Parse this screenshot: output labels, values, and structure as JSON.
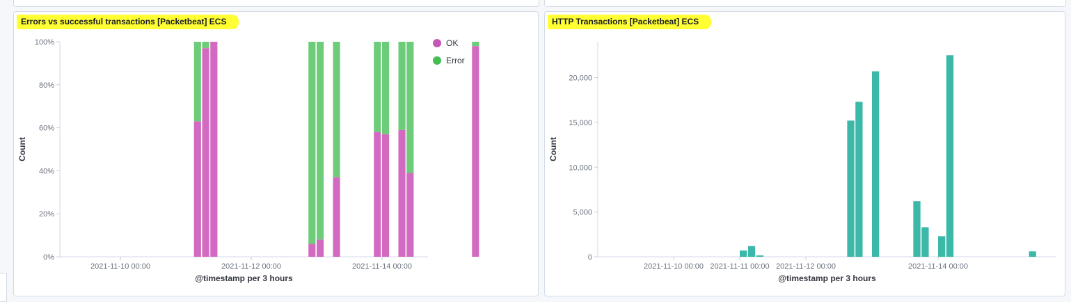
{
  "panels": {
    "left": {
      "title": "Errors vs successful transactions [Packetbeat] ECS",
      "chart_data": {
        "type": "bar",
        "stacked": true,
        "percentage": true,
        "xlabel": "@timestamp per 3 hours",
        "ylabel": "Count",
        "ylim": [
          0,
          100
        ],
        "y_ticks": [
          "0%",
          "20%",
          "40%",
          "60%",
          "80%",
          "100%"
        ],
        "x_tick_labels": [
          "2021-11-10 00:00",
          "2021-11-12 00:00",
          "2021-11-14 00:00"
        ],
        "legend": {
          "position": "top-right",
          "items": [
            {
              "label": "OK",
              "color": "#d36086"
            },
            {
              "label": "Error",
              "color": "#54b399"
            }
          ]
        },
        "bars": [
          {
            "x": "2021-11-11 03:00",
            "ok": 63,
            "error": 37
          },
          {
            "x": "2021-11-11 06:00",
            "ok": 97,
            "error": 3
          },
          {
            "x": "2021-11-11 09:00",
            "ok": 100,
            "error": 0
          },
          {
            "x": "2021-11-12 21:00",
            "ok": 6,
            "error": 94
          },
          {
            "x": "2021-11-13 00:00",
            "ok": 8,
            "error": 92
          },
          {
            "x": "2021-11-13 06:00",
            "ok": 37,
            "error": 63
          },
          {
            "x": "2021-11-13 21:00",
            "ok": 58,
            "error": 42
          },
          {
            "x": "2021-11-14 00:00",
            "ok": 57,
            "error": 43
          },
          {
            "x": "2021-11-14 06:00",
            "ok": 59,
            "error": 41
          },
          {
            "x": "2021-11-14 09:00",
            "ok": 39,
            "error": 61
          },
          {
            "x": "2021-11-15 09:00",
            "ok": 98,
            "error": 2
          }
        ]
      }
    },
    "right": {
      "title": "HTTP Transactions [Packetbeat] ECS",
      "chart_data": {
        "type": "bar",
        "xlabel": "@timestamp per 3 hours",
        "ylabel": "Count",
        "ylim": [
          0,
          24000
        ],
        "y_ticks": [
          "0",
          "5,000",
          "10,000",
          "15,000",
          "20,000"
        ],
        "x_tick_labels": [
          "2021-11-10 00:00",
          "2021-11-11 00:00",
          "2021-11-12 00:00",
          "2021-11-14 00:00"
        ],
        "color": "#54b399",
        "bars": [
          {
            "x": "2021-11-11 00:00",
            "value": 700
          },
          {
            "x": "2021-11-11 03:00",
            "value": 1200
          },
          {
            "x": "2021-11-11 06:00",
            "value": 150
          },
          {
            "x": "2021-11-12 15:00",
            "value": 15200
          },
          {
            "x": "2021-11-12 18:00",
            "value": 17300
          },
          {
            "x": "2021-11-13 00:00",
            "value": 20700
          },
          {
            "x": "2021-11-13 15:00",
            "value": 6200
          },
          {
            "x": "2021-11-13 18:00",
            "value": 3300
          },
          {
            "x": "2021-11-14 00:00",
            "value": 2300
          },
          {
            "x": "2021-11-14 03:00",
            "value": 22500
          },
          {
            "x": "2021-11-15 09:00",
            "value": 600
          }
        ]
      }
    }
  }
}
